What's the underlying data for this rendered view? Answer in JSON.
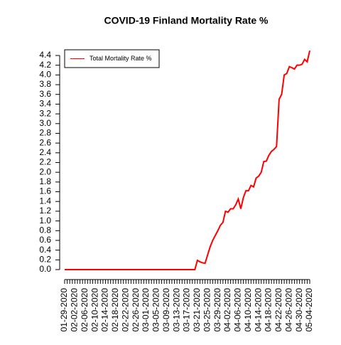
{
  "chart_data": {
    "type": "line",
    "title": "COVID-19 Finland Mortality Rate %",
    "categories": [
      "01-29-2020",
      null,
      null,
      null,
      "02-02-2020",
      null,
      null,
      null,
      "02-06-2020",
      null,
      null,
      null,
      "02-10-2020",
      null,
      null,
      null,
      "02-14-2020",
      null,
      null,
      null,
      "02-18-2020",
      null,
      null,
      null,
      "02-22-2020",
      null,
      null,
      null,
      "02-26-2020",
      null,
      null,
      null,
      "03-01-2020",
      null,
      null,
      null,
      "03-05-2020",
      null,
      null,
      null,
      "03-09-2020",
      null,
      null,
      null,
      "03-13-2020",
      null,
      null,
      null,
      "03-17-2020",
      null,
      null,
      null,
      "03-21-2020",
      null,
      null,
      null,
      "03-25-2020",
      null,
      null,
      null,
      "03-29-2020",
      null,
      null,
      null,
      "04-02-2020",
      null,
      null,
      null,
      "04-06-2020",
      null,
      null,
      null,
      "04-10-2020",
      null,
      null,
      null,
      "04-14-2020",
      null,
      null,
      null,
      "04-18-2020",
      null,
      null,
      null,
      "04-22-2020",
      null,
      null,
      null,
      "04-26-2020",
      null,
      null,
      null,
      "04-30-2020",
      null,
      null,
      null,
      "05-04-2020"
    ],
    "series": [
      {
        "name": "Total Mortality Rate %",
        "color": "#ff0000",
        "values": [
          0,
          0,
          0,
          0,
          0,
          0,
          0,
          0,
          0,
          0,
          0,
          0,
          0,
          0,
          0,
          0,
          0,
          0,
          0,
          0,
          0,
          0,
          0,
          0,
          0,
          0,
          0,
          0,
          0,
          0,
          0,
          0,
          0,
          0,
          0,
          0,
          0,
          0,
          0,
          0,
          0,
          0,
          0,
          0,
          0,
          0,
          0,
          0,
          0,
          0,
          0,
          0,
          0.19,
          0.16,
          0.14,
          0.13,
          0.3,
          0.47,
          0.6,
          0.7,
          0.8,
          0.91,
          0.97,
          1.2,
          1.18,
          1.25,
          1.25,
          1.33,
          1.45,
          1.25,
          1.48,
          1.62,
          1.62,
          1.73,
          1.7,
          1.88,
          1.92,
          2.0,
          2.22,
          2.23,
          2.35,
          2.43,
          2.47,
          2.53,
          3.5,
          3.6,
          4.0,
          4.03,
          4.17,
          4.15,
          4.12,
          4.2,
          4.2,
          4.22,
          4.32,
          4.27,
          4.5
        ]
      }
    ],
    "ylim": [
      0,
      4.5
    ],
    "yticks": [
      {
        "value": 0,
        "label": "0.0"
      },
      0.2,
      0.4,
      0.6,
      0.8,
      {
        "value": 1,
        "label": "1.0"
      },
      1.2,
      1.4,
      1.6,
      1.8,
      {
        "value": 2,
        "label": "2.0"
      },
      2.2,
      2.4,
      2.6,
      2.8,
      {
        "value": 3,
        "label": "3.0"
      },
      3.2,
      3.4,
      3.6,
      3.8,
      {
        "value": 4,
        "label": "4.0"
      },
      4.2,
      4.4
    ],
    "legend": "topleft"
  }
}
